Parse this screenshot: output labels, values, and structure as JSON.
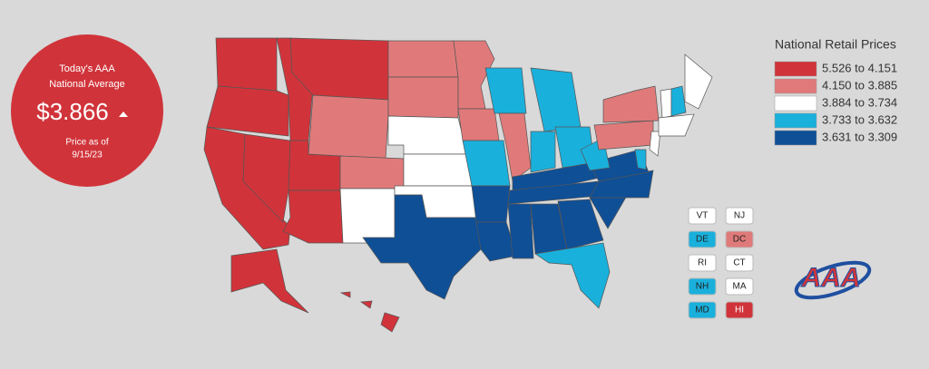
{
  "card": {
    "line1": "Today's AAA",
    "line2": "National Average",
    "price": "$3.866",
    "date_line1": "Price as of",
    "date_line2": "9/15/23"
  },
  "legend": {
    "title": "National Retail Prices",
    "items": [
      {
        "label": "5.526 to 4.151",
        "color": "#d0343a"
      },
      {
        "label": "4.150 to 3.885",
        "color": "#e07a7a"
      },
      {
        "label": "3.884 to 3.734",
        "color": "#ffffff"
      },
      {
        "label": "3.733 to 3.632",
        "color": "#1ab0dc"
      },
      {
        "label": "3.631 to 3.309",
        "color": "#0f4f96"
      }
    ]
  },
  "small_states": [
    "VT",
    "NJ",
    "DE",
    "DC",
    "RI",
    "CT",
    "NH",
    "MA",
    "MD",
    "HI"
  ],
  "logo": "AAA"
}
